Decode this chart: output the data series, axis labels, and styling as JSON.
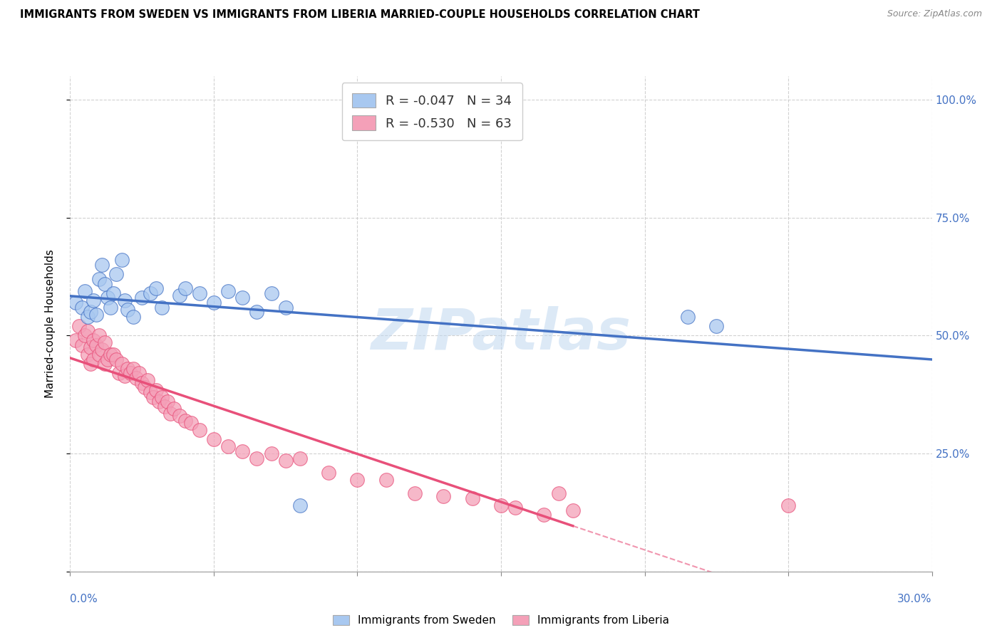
{
  "title": "IMMIGRANTS FROM SWEDEN VS IMMIGRANTS FROM LIBERIA MARRIED-COUPLE HOUSEHOLDS CORRELATION CHART",
  "source": "Source: ZipAtlas.com",
  "ylabel_label": "Married-couple Households",
  "legend1_label": "Immigrants from Sweden",
  "legend2_label": "Immigrants from Liberia",
  "R_sweden": -0.047,
  "N_sweden": 34,
  "R_liberia": -0.53,
  "N_liberia": 63,
  "color_sweden": "#A8C8F0",
  "color_liberia": "#F4A0B8",
  "color_line_sweden": "#4472C4",
  "color_line_liberia": "#E8507A",
  "watermark": "ZIPatlas",
  "xmin": 0.0,
  "xmax": 0.3,
  "ymin": 0.0,
  "ymax": 1.05,
  "sweden_x": [
    0.002,
    0.004,
    0.005,
    0.006,
    0.007,
    0.008,
    0.009,
    0.01,
    0.011,
    0.012,
    0.013,
    0.014,
    0.015,
    0.016,
    0.018,
    0.019,
    0.02,
    0.022,
    0.025,
    0.028,
    0.03,
    0.032,
    0.038,
    0.04,
    0.045,
    0.05,
    0.055,
    0.06,
    0.065,
    0.07,
    0.075,
    0.08,
    0.215,
    0.225
  ],
  "sweden_y": [
    0.57,
    0.56,
    0.595,
    0.54,
    0.55,
    0.575,
    0.545,
    0.62,
    0.65,
    0.61,
    0.58,
    0.56,
    0.59,
    0.63,
    0.66,
    0.575,
    0.555,
    0.54,
    0.58,
    0.59,
    0.6,
    0.56,
    0.585,
    0.6,
    0.59,
    0.57,
    0.595,
    0.58,
    0.55,
    0.59,
    0.56,
    0.14,
    0.54,
    0.52
  ],
  "liberia_x": [
    0.002,
    0.003,
    0.004,
    0.005,
    0.006,
    0.006,
    0.007,
    0.007,
    0.008,
    0.008,
    0.009,
    0.01,
    0.01,
    0.011,
    0.012,
    0.012,
    0.013,
    0.014,
    0.015,
    0.016,
    0.017,
    0.018,
    0.019,
    0.02,
    0.021,
    0.022,
    0.023,
    0.024,
    0.025,
    0.026,
    0.027,
    0.028,
    0.029,
    0.03,
    0.031,
    0.032,
    0.033,
    0.034,
    0.035,
    0.036,
    0.038,
    0.04,
    0.042,
    0.045,
    0.05,
    0.055,
    0.06,
    0.065,
    0.07,
    0.075,
    0.08,
    0.09,
    0.1,
    0.11,
    0.12,
    0.13,
    0.14,
    0.15,
    0.155,
    0.165,
    0.17,
    0.175,
    0.25
  ],
  "liberia_y": [
    0.49,
    0.52,
    0.48,
    0.5,
    0.51,
    0.46,
    0.475,
    0.44,
    0.49,
    0.45,
    0.48,
    0.5,
    0.46,
    0.47,
    0.485,
    0.44,
    0.45,
    0.46,
    0.46,
    0.45,
    0.42,
    0.44,
    0.415,
    0.43,
    0.42,
    0.43,
    0.41,
    0.42,
    0.4,
    0.39,
    0.405,
    0.38,
    0.37,
    0.385,
    0.36,
    0.37,
    0.35,
    0.36,
    0.335,
    0.345,
    0.33,
    0.32,
    0.315,
    0.3,
    0.28,
    0.265,
    0.255,
    0.24,
    0.25,
    0.235,
    0.24,
    0.21,
    0.195,
    0.195,
    0.165,
    0.16,
    0.155,
    0.14,
    0.135,
    0.12,
    0.165,
    0.13,
    0.14
  ]
}
